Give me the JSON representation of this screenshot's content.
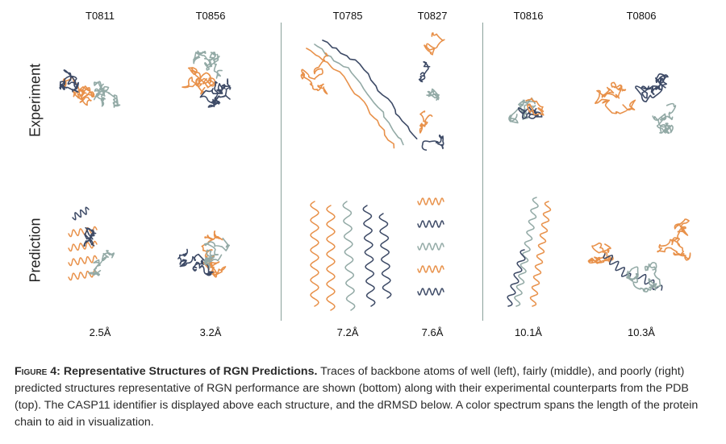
{
  "figure": {
    "columns": [
      {
        "id": "T0811",
        "rmsd": "2.5Å"
      },
      {
        "id": "T0856",
        "rmsd": "3.2Å"
      },
      {
        "id": "T0785",
        "rmsd": "7.2Å"
      },
      {
        "id": "T0827",
        "rmsd": "7.6Å"
      },
      {
        "id": "T0816",
        "rmsd": "10.1Å"
      },
      {
        "id": "T0806",
        "rmsd": "10.3Å"
      }
    ],
    "rows": [
      "Experiment",
      "Prediction"
    ],
    "colors": {
      "orange": "#e8914a",
      "navy": "#3d4a66",
      "sage": "#93aaa6",
      "divider": "#8aa19b"
    }
  },
  "caption": {
    "label": "Figure 4:",
    "title": "Representative Structures of RGN Predictions.",
    "text": "Traces of backbone atoms of well (left), fairly (middle), and poorly (right) predicted structures representative of RGN performance are shown (bottom) along with their experimental counterparts from the PDB (top). The CASP11 identifier is displayed above each structure, and the dRMSD below. A color spectrum spans the length of the protein chain to aid in visualization."
  }
}
